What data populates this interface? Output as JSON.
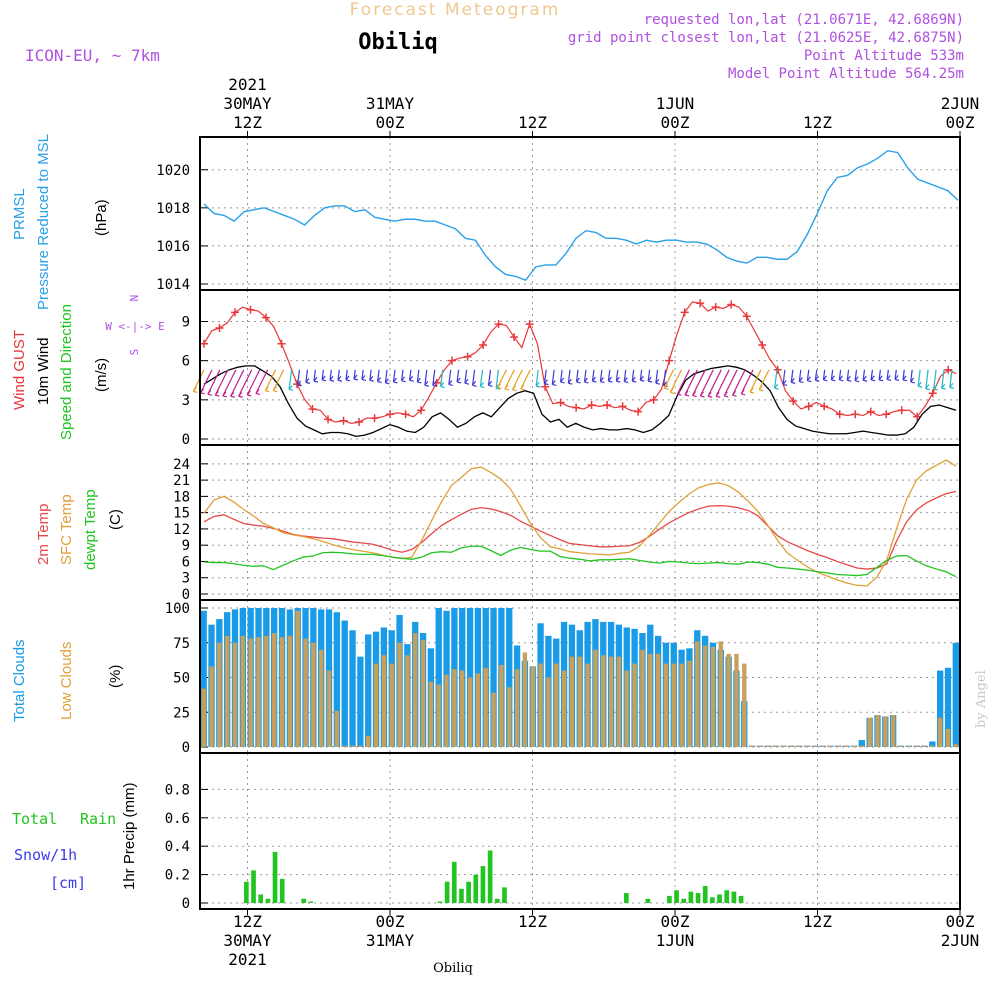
{
  "header": {
    "title": "Forecast Meteogram",
    "location": "Obiliq",
    "model": "ICON-EU, ~ 7km",
    "requested": "requested lon,lat (21.0671E, 42.6869N)",
    "gridpoint": "grid point closest lon,lat (21.0625E, 42.6875N)",
    "point_alt": "Point Altitude 533m",
    "model_alt": "Model Point Altitude 564.25m",
    "credit": "by Angel",
    "footer": "Obiliq"
  },
  "colors": {
    "pressure": "#2aa0e8",
    "gust": "#e8383a",
    "wind": "#000000",
    "temp2m": "#e84848",
    "sfc": "#e0a038",
    "dew": "#22c422",
    "total_clouds": "#1a9be8",
    "low_clouds": "#c8a05a",
    "rain": "#22c422",
    "label_purple": "#b050e0",
    "title_orange": "#f0c890",
    "snow_label": "#3c3ce8"
  },
  "labels": {
    "pressure": [
      "PRMSL",
      "Pressure Reduced to MSL",
      "(hPa)"
    ],
    "wind": [
      "Wind GUST",
      "10m Wind",
      "Speed and Direction",
      "(m/s)"
    ],
    "compass": [
      "N",
      "W <-|-> E",
      "S"
    ],
    "temp": [
      "2m Temp",
      "SFC Temp",
      "dewpt Temp",
      "(C)"
    ],
    "clouds": [
      "Total Clouds",
      "Low Clouds",
      "(%)"
    ],
    "precip": [
      "Total",
      "Rain",
      "Snow/1h",
      "[cm]",
      "1hr Precip (mm)"
    ]
  },
  "time_axis": {
    "hours": 64,
    "ticks": [
      {
        "h": 4,
        "top": [
          "2021",
          "30MAY",
          "12Z"
        ],
        "bottom": [
          "12Z",
          "30MAY",
          "2021"
        ]
      },
      {
        "h": 16,
        "top": [
          "31MAY",
          "00Z"
        ],
        "bottom": [
          "00Z",
          "31MAY"
        ]
      },
      {
        "h": 28,
        "top": [
          "12Z"
        ],
        "bottom": [
          "12Z"
        ]
      },
      {
        "h": 40,
        "top": [
          "1JUN",
          "00Z"
        ],
        "bottom": [
          "00Z",
          "1JUN"
        ]
      },
      {
        "h": 52,
        "top": [
          "12Z"
        ],
        "bottom": [
          "12Z"
        ]
      },
      {
        "h": 64,
        "top": [
          "2JUN",
          "00Z"
        ],
        "bottom": [
          "00Z",
          "2JUN"
        ]
      }
    ]
  },
  "chart_data": [
    {
      "type": "line",
      "ylim": [
        1014,
        1021.3
      ],
      "yticks": [
        1014,
        1016,
        1018,
        1020
      ],
      "series": [
        {
          "name": "PRMSL",
          "values": [
            1018.2,
            1017.7,
            1017.6,
            1017.3,
            1017.8,
            1017.9,
            1018.0,
            1017.8,
            1017.6,
            1017.4,
            1017.1,
            1017.6,
            1018.0,
            1018.1,
            1018.1,
            1017.8,
            1017.9,
            1017.5,
            1017.4,
            1017.3,
            1017.4,
            1017.4,
            1017.3,
            1017.3,
            1017.1,
            1016.9,
            1016.4,
            1016.3,
            1015.5,
            1014.9,
            1014.5,
            1014.4,
            1014.2,
            1014.9,
            1015.0,
            1015.0,
            1015.6,
            1016.4,
            1016.8,
            1016.7,
            1016.4,
            1016.4,
            1016.3,
            1016.1,
            1016.3,
            1016.2,
            1016.3,
            1016.3,
            1016.2,
            1016.2,
            1016.1,
            1015.8,
            1015.4,
            1015.2,
            1015.1,
            1015.4,
            1015.4,
            1015.3,
            1015.3,
            1015.7,
            1016.6,
            1017.7,
            1018.9,
            1019.6,
            1019.7,
            1020.1,
            1020.3,
            1020.6,
            1021.0,
            1020.9,
            1020.1,
            1019.5,
            1019.3,
            1019.1,
            1018.9,
            1018.4
          ]
        }
      ]
    },
    {
      "type": "line",
      "ylim": [
        0,
        10.8
      ],
      "yticks": [
        0,
        3,
        6,
        9
      ],
      "series": [
        {
          "name": "Wind GUST",
          "values": [
            7.3,
            8.3,
            8.5,
            8.9,
            9.7,
            10.1,
            9.9,
            9.8,
            9.3,
            8.6,
            7.3,
            5.8,
            4.2,
            3.0,
            2.3,
            2.2,
            1.5,
            1.3,
            1.4,
            1.2,
            1.3,
            1.6,
            1.6,
            1.7,
            1.9,
            2.0,
            1.9,
            1.7,
            2.2,
            3.2,
            4.3,
            5.3,
            6.0,
            6.2,
            6.3,
            6.6,
            7.2,
            8.2,
            8.8,
            8.7,
            7.8,
            7.0,
            8.8,
            7.3,
            4.0,
            2.7,
            2.8,
            2.5,
            2.4,
            2.3,
            2.6,
            2.5,
            2.6,
            2.4,
            2.5,
            2.2,
            2.1,
            2.8,
            3.0,
            3.8,
            6.0,
            8.0,
            9.7,
            10.5,
            10.4,
            9.8,
            10.1,
            10.0,
            10.3,
            10.1,
            9.4,
            8.3,
            7.2,
            6.1,
            5.3,
            3.7,
            2.9,
            2.3,
            2.5,
            2.8,
            2.5,
            2.3,
            1.9,
            1.8,
            1.9,
            1.8,
            2.1,
            1.8,
            1.9,
            2.1,
            2.2,
            2.2,
            1.7,
            2.5,
            3.5,
            4.8,
            5.3,
            5.0
          ]
        },
        {
          "name": "10m Wind",
          "values": [
            4.2,
            4.6,
            5.0,
            5.3,
            5.5,
            5.6,
            5.6,
            5.2,
            4.8,
            4.0,
            2.7,
            1.6,
            1.0,
            0.7,
            0.4,
            0.5,
            0.5,
            0.4,
            0.2,
            0.3,
            0.5,
            0.8,
            1.1,
            0.9,
            0.6,
            0.5,
            0.9,
            1.7,
            2.0,
            1.5,
            0.9,
            1.2,
            1.7,
            2.0,
            1.7,
            2.4,
            3.1,
            3.5,
            3.7,
            3.5,
            1.9,
            1.3,
            1.5,
            0.9,
            1.2,
            0.9,
            0.7,
            0.8,
            0.7,
            0.7,
            0.8,
            0.7,
            0.5,
            0.7,
            1.2,
            1.8,
            3.3,
            4.5,
            5.0,
            5.2,
            5.4,
            5.5,
            5.6,
            5.5,
            5.3,
            4.9,
            4.4,
            3.7,
            2.4,
            1.5,
            1.0,
            0.8,
            0.6,
            0.5,
            0.4,
            0.4,
            0.4,
            0.5,
            0.6,
            0.5,
            0.4,
            0.3,
            0.3,
            0.4,
            0.9,
            1.9,
            2.5,
            2.6,
            2.4,
            2.2
          ]
        }
      ]
    },
    {
      "type": "line",
      "ylim": [
        0,
        26
      ],
      "yticks": [
        0,
        3,
        6,
        9,
        12,
        15,
        18,
        21,
        24
      ],
      "series": [
        {
          "name": "2m Temp",
          "values": [
            13.3,
            14.3,
            14.6,
            13.8,
            13.0,
            12.7,
            12.5,
            12.1,
            11.6,
            11.0,
            10.7,
            10.5,
            10.3,
            10.2,
            9.9,
            9.6,
            9.4,
            9.2,
            8.7,
            8.1,
            7.7,
            8.2,
            9.5,
            11.1,
            12.6,
            13.7,
            14.7,
            15.6,
            15.9,
            15.7,
            15.2,
            14.5,
            13.4,
            12.5,
            11.6,
            10.8,
            10.0,
            9.3,
            9.1,
            8.9,
            8.7,
            8.7,
            8.8,
            8.9,
            9.5,
            10.6,
            11.9,
            13.1,
            14.1,
            15.0,
            15.7,
            16.2,
            16.3,
            16.2,
            15.9,
            15.4,
            14.4,
            12.5,
            10.7,
            9.6,
            8.8,
            8.0,
            7.3,
            6.7,
            6.0,
            5.4,
            4.8,
            4.6,
            4.8,
            5.5,
            9.8,
            13.3,
            15.5,
            16.8,
            17.7,
            18.5,
            18.9
          ]
        },
        {
          "name": "SFC Temp",
          "values": [
            14.9,
            17.3,
            18.0,
            17.0,
            15.6,
            14.4,
            13.0,
            12.2,
            11.3,
            10.9,
            10.6,
            10.2,
            9.7,
            9.1,
            8.6,
            8.2,
            7.9,
            7.6,
            7.2,
            6.8,
            6.5,
            6.8,
            9.9,
            13.5,
            17.0,
            20.0,
            21.5,
            23.1,
            23.4,
            22.4,
            21.2,
            19.3,
            16.2,
            13.0,
            10.4,
            8.7,
            8.3,
            7.8,
            7.6,
            7.4,
            7.3,
            7.2,
            7.5,
            7.7,
            8.8,
            10.8,
            13.0,
            15.2,
            16.9,
            18.4,
            19.6,
            20.2,
            20.5,
            20.0,
            18.8,
            17.1,
            15.2,
            12.6,
            9.8,
            7.5,
            6.2,
            5.0,
            4.0,
            3.3,
            2.6,
            2.0,
            1.6,
            1.5,
            3.1,
            6.2,
            12.1,
            17.4,
            21.0,
            22.7,
            23.7,
            24.7,
            23.6
          ]
        },
        {
          "name": "dewpt Temp",
          "values": [
            5.9,
            5.8,
            5.8,
            5.6,
            5.3,
            5.1,
            5.2,
            4.5,
            5.3,
            6.1,
            6.8,
            7.0,
            7.6,
            7.7,
            7.6,
            7.4,
            7.3,
            7.3,
            7.1,
            6.8,
            6.6,
            6.4,
            6.8,
            7.6,
            7.8,
            7.7,
            8.5,
            8.8,
            8.8,
            8.0,
            7.1,
            8.1,
            8.6,
            8.2,
            7.9,
            7.9,
            6.9,
            6.6,
            6.4,
            6.1,
            6.3,
            6.3,
            6.4,
            6.5,
            6.2,
            5.9,
            5.7,
            6.0,
            5.9,
            5.7,
            5.6,
            5.7,
            5.8,
            5.6,
            5.5,
            5.9,
            5.8,
            5.5,
            4.9,
            4.8,
            4.6,
            4.4,
            4.1,
            3.9,
            3.6,
            3.5,
            3.4,
            3.6,
            4.9,
            6.2,
            7.0,
            7.1,
            6.1,
            5.2,
            4.6,
            4.1,
            3.2
          ]
        }
      ]
    },
    {
      "type": "bar",
      "ylim": [
        0,
        100
      ],
      "yticks": [
        0,
        25,
        50,
        75,
        100
      ],
      "series": [
        {
          "name": "Total Clouds",
          "values": [
            98,
            88,
            92,
            97,
            99,
            100,
            100,
            100,
            100,
            100,
            100,
            99,
            100,
            100,
            100,
            99,
            99,
            97,
            91,
            84,
            65,
            81,
            83,
            86,
            84,
            95,
            74,
            90,
            82,
            71,
            100,
            98,
            100,
            100,
            100,
            100,
            100,
            100,
            100,
            100,
            73,
            62,
            58,
            89,
            80,
            78,
            90,
            88,
            84,
            90,
            92,
            90,
            90,
            88,
            86,
            85,
            82,
            88,
            80,
            75,
            75,
            70,
            71,
            84,
            80,
            75,
            70,
            65,
            55,
            33,
            1,
            1,
            1,
            1,
            1,
            1,
            1,
            1,
            1,
            1,
            1,
            1,
            1,
            1,
            5,
            21,
            23,
            22,
            23,
            1,
            1,
            1,
            1,
            4,
            55,
            57,
            75
          ]
        },
        {
          "name": "Low Clouds",
          "values": [
            42,
            58,
            75,
            80,
            75,
            80,
            78,
            79,
            80,
            82,
            79,
            80,
            98,
            78,
            75,
            70,
            55,
            26,
            1,
            1,
            1,
            8,
            60,
            66,
            60,
            75,
            66,
            82,
            77,
            47,
            45,
            52,
            56,
            55,
            50,
            53,
            57,
            39,
            59,
            43,
            56,
            68,
            58,
            60,
            50,
            60,
            55,
            65,
            65,
            60,
            70,
            66,
            65,
            65,
            55,
            60,
            70,
            67,
            67,
            60,
            60,
            60,
            62,
            76,
            73,
            72,
            76,
            67,
            67,
            60,
            1,
            1,
            1,
            1,
            1,
            1,
            1,
            1,
            1,
            1,
            1,
            1,
            1,
            1,
            1,
            21,
            23,
            22,
            23,
            1,
            1,
            1,
            1,
            1,
            21,
            13,
            2
          ]
        }
      ]
    },
    {
      "type": "bar",
      "ylim": [
        0,
        1
      ],
      "yticks": [
        0,
        0.2,
        0.4,
        0.6,
        0.8
      ],
      "series": [
        {
          "name": "Total Rain",
          "values": [
            0,
            0,
            0,
            0,
            0,
            0,
            0.15,
            0.23,
            0.06,
            0.03,
            0.36,
            0.17,
            0,
            0,
            0.03,
            0.01,
            0,
            0,
            0,
            0,
            0,
            0,
            0,
            0,
            0,
            0,
            0,
            0,
            0,
            0,
            0,
            0,
            0,
            0.01,
            0.15,
            0.29,
            0.1,
            0.15,
            0.2,
            0.26,
            0.37,
            0.03,
            0.11,
            0,
            0,
            0,
            0,
            0,
            0,
            0,
            0,
            0,
            0,
            0,
            0,
            0,
            0,
            0,
            0,
            0.07,
            0,
            0,
            0.03,
            0,
            0,
            0.05,
            0.09,
            0.03,
            0.08,
            0.07,
            0.12,
            0.04,
            0.06,
            0.09,
            0.08,
            0.05,
            0,
            0,
            0,
            0,
            0,
            0,
            0,
            0,
            0,
            0,
            0,
            0,
            0,
            0,
            0,
            0,
            0,
            0,
            0,
            0,
            0,
            0,
            0,
            0,
            0,
            0,
            0,
            0,
            0,
            0
          ]
        }
      ]
    }
  ]
}
